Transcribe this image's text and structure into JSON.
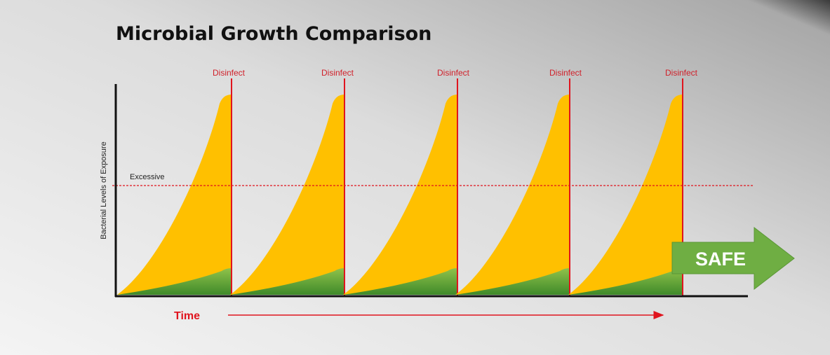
{
  "title": "Microbial Growth Comparison",
  "markers": [
    {
      "label": "Disinfect"
    },
    {
      "label": "Disinfect"
    },
    {
      "label": "Disinfect"
    },
    {
      "label": "Disinfect"
    },
    {
      "label": "Disinfect"
    }
  ],
  "threshold_label": "Excessive",
  "y_axis_label": "Bacterial Levels of Exposure",
  "x_axis_label": "Time",
  "callout": "SAFE"
}
